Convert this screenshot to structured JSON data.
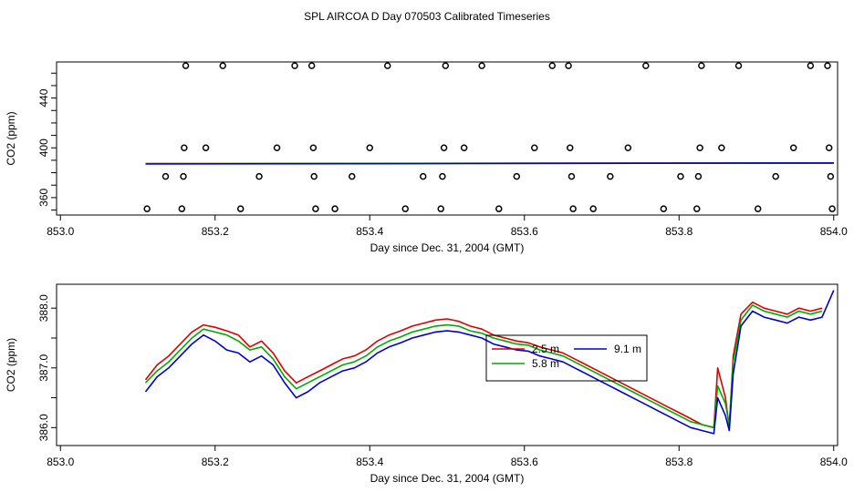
{
  "title": "SPL AIRCOA D  Day 070503  Calibrated Timeseries",
  "chart_data": [
    {
      "type": "scatter",
      "xlabel": "Day since Dec. 31, 2004 (GMT)",
      "ylabel": "CO2 (ppm)",
      "xlim": [
        852.995,
        854.005
      ],
      "ylim": [
        346,
        469
      ],
      "x_ticks": [
        853.0,
        853.2,
        853.4,
        853.6,
        853.8,
        854.0
      ],
      "x_tick_labels": [
        "853.0",
        "853.2",
        "853.4",
        "853.6",
        "853.8",
        "854.0"
      ],
      "y_ticks": [
        350,
        360,
        370,
        380,
        390,
        400,
        410,
        420,
        430,
        440,
        450,
        460
      ],
      "y_tick_labels": [
        "360",
        "400",
        "440"
      ],
      "y_tick_label_values": [
        360,
        400,
        440
      ],
      "calibration_points": [
        {
          "x": 853.112,
          "y": 351
        },
        {
          "x": 853.136,
          "y": 377
        },
        {
          "x": 853.157,
          "y": 351
        },
        {
          "x": 853.159,
          "y": 377
        },
        {
          "x": 853.16,
          "y": 400
        },
        {
          "x": 853.162,
          "y": 466
        },
        {
          "x": 853.188,
          "y": 400
        },
        {
          "x": 853.21,
          "y": 466
        },
        {
          "x": 853.233,
          "y": 351
        },
        {
          "x": 853.257,
          "y": 377
        },
        {
          "x": 853.28,
          "y": 400
        },
        {
          "x": 853.303,
          "y": 466
        },
        {
          "x": 853.325,
          "y": 466
        },
        {
          "x": 853.327,
          "y": 400
        },
        {
          "x": 853.328,
          "y": 377
        },
        {
          "x": 853.33,
          "y": 351
        },
        {
          "x": 853.355,
          "y": 351
        },
        {
          "x": 853.377,
          "y": 377
        },
        {
          "x": 853.4,
          "y": 400
        },
        {
          "x": 853.423,
          "y": 466
        },
        {
          "x": 853.446,
          "y": 351
        },
        {
          "x": 853.469,
          "y": 377
        },
        {
          "x": 853.492,
          "y": 351
        },
        {
          "x": 853.494,
          "y": 377
        },
        {
          "x": 853.496,
          "y": 400
        },
        {
          "x": 853.498,
          "y": 466
        },
        {
          "x": 853.522,
          "y": 400
        },
        {
          "x": 853.545,
          "y": 466
        },
        {
          "x": 853.567,
          "y": 351
        },
        {
          "x": 853.59,
          "y": 377
        },
        {
          "x": 853.613,
          "y": 400
        },
        {
          "x": 853.636,
          "y": 466
        },
        {
          "x": 853.657,
          "y": 466
        },
        {
          "x": 853.659,
          "y": 400
        },
        {
          "x": 853.661,
          "y": 377
        },
        {
          "x": 853.663,
          "y": 351
        },
        {
          "x": 853.689,
          "y": 351
        },
        {
          "x": 853.711,
          "y": 377
        },
        {
          "x": 853.734,
          "y": 400
        },
        {
          "x": 853.757,
          "y": 466
        },
        {
          "x": 853.78,
          "y": 351
        },
        {
          "x": 853.802,
          "y": 377
        },
        {
          "x": 853.823,
          "y": 351
        },
        {
          "x": 853.825,
          "y": 377
        },
        {
          "x": 853.827,
          "y": 400
        },
        {
          "x": 853.829,
          "y": 466
        },
        {
          "x": 853.855,
          "y": 400
        },
        {
          "x": 853.877,
          "y": 466
        },
        {
          "x": 853.902,
          "y": 351
        },
        {
          "x": 853.925,
          "y": 377
        },
        {
          "x": 853.948,
          "y": 400
        },
        {
          "x": 853.97,
          "y": 466
        },
        {
          "x": 853.992,
          "y": 466
        },
        {
          "x": 853.994,
          "y": 400
        },
        {
          "x": 853.996,
          "y": 377
        },
        {
          "x": 853.998,
          "y": 351
        }
      ],
      "series": [
        {
          "name": "2.5 m",
          "color": "#dd0000",
          "x": [
            853.11,
            854.0
          ],
          "y": [
            387.3,
            387.9
          ]
        },
        {
          "name": "5.8 m",
          "color": "#00aa00",
          "x": [
            853.11,
            854.0
          ],
          "y": [
            387.2,
            387.8
          ]
        },
        {
          "name": "9.1 m",
          "color": "#0000cc",
          "x": [
            853.11,
            854.0
          ],
          "y": [
            387.0,
            387.8
          ]
        }
      ]
    },
    {
      "type": "line",
      "xlabel": "Day since Dec. 31, 2004 (GMT)",
      "ylabel": "CO2 (ppm)",
      "xlim": [
        852.995,
        854.005
      ],
      "ylim": [
        385.7,
        388.4
      ],
      "x_ticks": [
        853.0,
        853.2,
        853.4,
        853.6,
        853.8,
        854.0
      ],
      "x_tick_labels": [
        "853.0",
        "853.2",
        "853.4",
        "853.6",
        "853.8",
        "854.0"
      ],
      "y_ticks": [
        386.0,
        386.5,
        387.0,
        387.5,
        388.0
      ],
      "y_tick_labels": [
        "386.0",
        "387.0",
        "388.0"
      ],
      "y_tick_label_values": [
        386.0,
        387.0,
        388.0
      ],
      "legend": [
        "2.5 m",
        "5.8 m",
        "9.1 m"
      ],
      "series": [
        {
          "name": "2.5 m",
          "color": "#dd0000",
          "x": [
            853.11,
            853.125,
            853.14,
            853.155,
            853.17,
            853.185,
            853.2,
            853.215,
            853.23,
            853.245,
            853.26,
            853.275,
            853.29,
            853.305,
            853.32,
            853.335,
            853.35,
            853.365,
            853.38,
            853.395,
            853.41,
            853.425,
            853.44,
            853.455,
            853.47,
            853.485,
            853.5,
            853.515,
            853.53,
            853.545,
            853.56,
            853.575,
            853.59,
            853.605,
            853.62,
            853.635,
            853.65,
            853.665,
            853.68,
            853.695,
            853.71,
            853.725,
            853.74,
            853.755,
            853.77,
            853.785,
            853.8,
            853.815,
            853.83,
            853.845,
            853.85,
            853.86,
            853.865,
            853.87,
            853.88,
            853.895,
            853.91,
            853.925,
            853.94,
            853.955,
            853.97,
            853.985
          ],
          "y": [
            386.8,
            387.05,
            387.2,
            387.4,
            387.6,
            387.72,
            387.68,
            387.62,
            387.55,
            387.35,
            387.45,
            387.25,
            386.95,
            386.75,
            386.85,
            386.95,
            387.05,
            387.15,
            387.2,
            387.3,
            387.45,
            387.55,
            387.62,
            387.7,
            387.75,
            387.8,
            387.82,
            387.78,
            387.7,
            387.65,
            387.55,
            387.5,
            387.45,
            387.42,
            387.35,
            387.3,
            387.25,
            387.15,
            387.05,
            386.95,
            386.85,
            386.75,
            386.65,
            386.55,
            386.45,
            386.35,
            386.25,
            386.15,
            386.05,
            386.0,
            387.0,
            386.5,
            386.0,
            387.2,
            387.9,
            388.1,
            388.0,
            387.95,
            387.9,
            388.0,
            387.95,
            388.0
          ]
        },
        {
          "name": "5.8 m",
          "color": "#00aa00",
          "x": [
            853.11,
            853.125,
            853.14,
            853.155,
            853.17,
            853.185,
            853.2,
            853.215,
            853.23,
            853.245,
            853.26,
            853.275,
            853.29,
            853.305,
            853.32,
            853.335,
            853.35,
            853.365,
            853.38,
            853.395,
            853.41,
            853.425,
            853.44,
            853.455,
            853.47,
            853.485,
            853.5,
            853.515,
            853.53,
            853.545,
            853.56,
            853.575,
            853.59,
            853.605,
            853.62,
            853.635,
            853.65,
            853.665,
            853.68,
            853.695,
            853.71,
            853.725,
            853.74,
            853.755,
            853.77,
            853.785,
            853.8,
            853.815,
            853.83,
            853.845,
            853.85,
            853.86,
            853.865,
            853.87,
            853.88,
            853.895,
            853.91,
            853.925,
            853.94,
            853.955,
            853.97,
            853.985
          ],
          "y": [
            386.75,
            386.95,
            387.1,
            387.3,
            387.5,
            387.65,
            387.6,
            387.55,
            387.45,
            387.3,
            387.35,
            387.15,
            386.85,
            386.65,
            386.75,
            386.85,
            386.95,
            387.05,
            387.1,
            387.2,
            387.35,
            387.45,
            387.52,
            387.6,
            387.65,
            387.7,
            387.72,
            387.7,
            387.62,
            387.58,
            387.5,
            387.45,
            387.4,
            387.38,
            387.3,
            387.25,
            387.2,
            387.1,
            387.0,
            386.9,
            386.8,
            386.7,
            386.6,
            386.5,
            386.4,
            386.3,
            386.2,
            386.1,
            386.05,
            386.0,
            386.7,
            386.4,
            386.05,
            387.1,
            387.8,
            388.05,
            387.95,
            387.9,
            387.85,
            387.95,
            387.9,
            387.95
          ]
        },
        {
          "name": "9.1 m",
          "color": "#0000cc",
          "x": [
            853.11,
            853.125,
            853.14,
            853.155,
            853.17,
            853.185,
            853.2,
            853.215,
            853.23,
            853.245,
            853.26,
            853.275,
            853.29,
            853.305,
            853.32,
            853.335,
            853.35,
            853.365,
            853.38,
            853.395,
            853.41,
            853.425,
            853.44,
            853.455,
            853.47,
            853.485,
            853.5,
            853.515,
            853.53,
            853.545,
            853.56,
            853.575,
            853.59,
            853.605,
            853.62,
            853.635,
            853.65,
            853.665,
            853.68,
            853.695,
            853.71,
            853.725,
            853.74,
            853.755,
            853.77,
            853.785,
            853.8,
            853.815,
            853.83,
            853.845,
            853.85,
            853.86,
            853.865,
            853.87,
            853.88,
            853.895,
            853.91,
            853.925,
            853.94,
            853.955,
            853.97,
            853.985,
            854.0
          ],
          "y": [
            386.6,
            386.85,
            387.0,
            387.2,
            387.4,
            387.55,
            387.45,
            387.3,
            387.25,
            387.1,
            387.2,
            387.05,
            386.75,
            386.5,
            386.6,
            386.75,
            386.85,
            386.95,
            387.0,
            387.1,
            387.25,
            387.35,
            387.42,
            387.5,
            387.55,
            387.6,
            387.62,
            387.6,
            387.55,
            387.5,
            387.4,
            387.35,
            387.3,
            387.28,
            387.2,
            387.15,
            387.1,
            387.0,
            386.9,
            386.8,
            386.7,
            386.6,
            386.5,
            386.4,
            386.3,
            386.2,
            386.1,
            386.0,
            385.95,
            385.9,
            386.5,
            386.2,
            385.95,
            386.9,
            387.7,
            387.95,
            387.85,
            387.8,
            387.75,
            387.85,
            387.8,
            387.85,
            388.3
          ]
        }
      ]
    }
  ]
}
